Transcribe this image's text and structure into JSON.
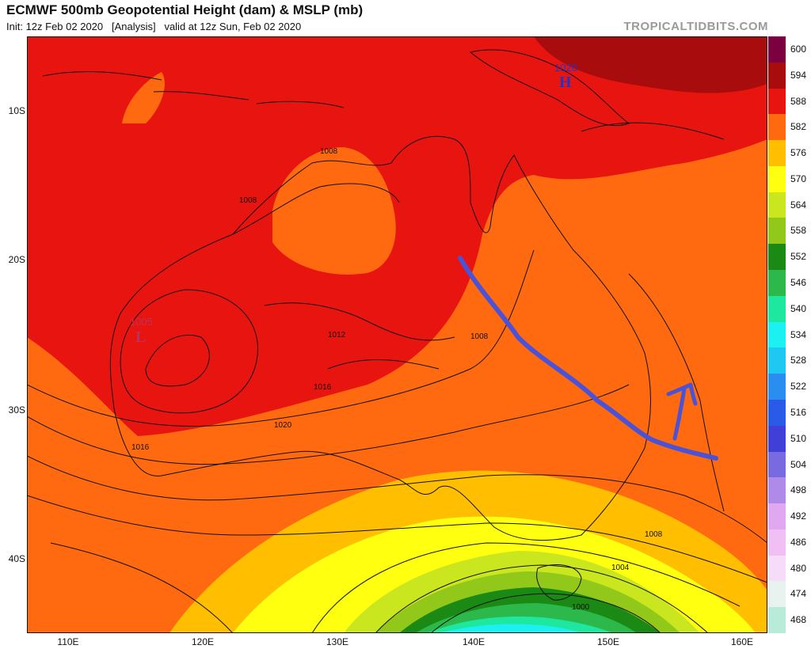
{
  "header": {
    "title": "ECMWF 500mb Geopotential Height (dam) & MSLP (mb)",
    "subtitle": "Init: 12z Feb 02 2020   [Analysis]   valid at 12z Sun, Feb 02 2020",
    "credit": "TROPICALTIDBITS.COM"
  },
  "map": {
    "lat_labels": [
      "10S",
      "20S",
      "30S",
      "40S"
    ],
    "lon_labels": [
      "110E",
      "120E",
      "130E",
      "140E",
      "150E",
      "160E"
    ],
    "pressure_centers": [
      {
        "letter": "L",
        "value": "1005",
        "color": "#c0305a"
      },
      {
        "letter": "H",
        "value": "1020",
        "color": "#2233cc"
      }
    ],
    "isobar_labels": [
      "1008",
      "1008",
      "1012",
      "1008",
      "1016",
      "1020",
      "1016",
      "1008",
      "1004",
      "1000"
    ]
  },
  "colorbar": {
    "levels": [
      {
        "label": "600",
        "color": "#7a0040"
      },
      {
        "label": "594",
        "color": "#a80c0c"
      },
      {
        "label": "588",
        "color": "#e8140f"
      },
      {
        "label": "582",
        "color": "#ff6a10"
      },
      {
        "label": "576",
        "color": "#ffbf00"
      },
      {
        "label": "570",
        "color": "#ffff10"
      },
      {
        "label": "564",
        "color": "#c9e61e"
      },
      {
        "label": "558",
        "color": "#92c81a"
      },
      {
        "label": "552",
        "color": "#1b8a14"
      },
      {
        "label": "546",
        "color": "#2cb84a"
      },
      {
        "label": "540",
        "color": "#1ee8a0"
      },
      {
        "label": "534",
        "color": "#1cf0f0"
      },
      {
        "label": "528",
        "color": "#1ec8f0"
      },
      {
        "label": "522",
        "color": "#2a8ef0"
      },
      {
        "label": "516",
        "color": "#2a5ae8"
      },
      {
        "label": "510",
        "color": "#4040d8"
      },
      {
        "label": "504",
        "color": "#7a6ae0"
      },
      {
        "label": "498",
        "color": "#b08ae8"
      },
      {
        "label": "492",
        "color": "#e0a8f0"
      },
      {
        "label": "486",
        "color": "#f0c0f4"
      },
      {
        "label": "480",
        "color": "#f6dcf8"
      },
      {
        "label": "474",
        "color": "#e8f2ee"
      },
      {
        "label": "468",
        "color": "#b8ecd8"
      }
    ]
  }
}
